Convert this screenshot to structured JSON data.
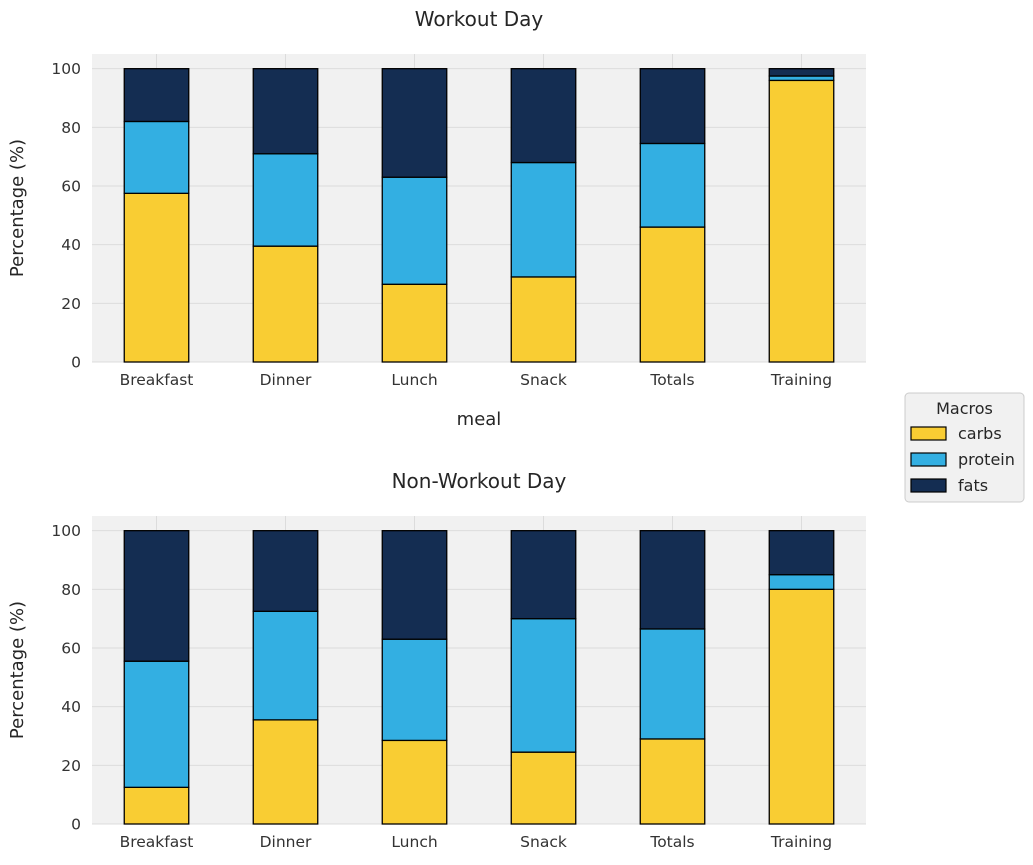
{
  "colors": {
    "carbs": "#F9CD33",
    "protein": "#33AFE2",
    "fats": "#142D52",
    "plot_bg": "#F1F1F1",
    "grid": "#DCDCDC",
    "bar_edge": "#000000"
  },
  "legend": {
    "title": "Macros",
    "placement": "right-center",
    "entries": [
      "carbs",
      "protein",
      "fats"
    ]
  },
  "chart_data": [
    {
      "type": "bar",
      "stacked": true,
      "title": "Workout Day",
      "xlabel": "meal",
      "ylabel": "Percentage (%)",
      "ylim": [
        0,
        105
      ],
      "yticks": [
        0,
        20,
        40,
        60,
        80,
        100
      ],
      "grid": true,
      "categories": [
        "Breakfast",
        "Dinner",
        "Lunch",
        "Snack",
        "Totals",
        "Training"
      ],
      "series": [
        {
          "name": "carbs",
          "values": [
            57.5,
            39.5,
            26.5,
            29,
            46,
            96
          ]
        },
        {
          "name": "protein",
          "values": [
            24.5,
            31.5,
            36.5,
            39,
            28.5,
            1.5
          ]
        },
        {
          "name": "fats",
          "values": [
            18,
            29,
            37,
            32,
            25.5,
            2.5
          ]
        }
      ]
    },
    {
      "type": "bar",
      "stacked": true,
      "title": "Non-Workout Day",
      "xlabel": "",
      "ylabel": "Percentage (%)",
      "ylim": [
        0,
        105
      ],
      "yticks": [
        0,
        20,
        40,
        60,
        80,
        100
      ],
      "grid": true,
      "categories": [
        "Breakfast",
        "Dinner",
        "Lunch",
        "Snack",
        "Totals",
        "Training"
      ],
      "series": [
        {
          "name": "carbs",
          "values": [
            12.5,
            35.5,
            28.5,
            24.5,
            29,
            80
          ]
        },
        {
          "name": "protein",
          "values": [
            43,
            37,
            34.5,
            45.5,
            37.5,
            5
          ]
        },
        {
          "name": "fats",
          "values": [
            44.5,
            27.5,
            37,
            30,
            33.5,
            15
          ]
        }
      ]
    }
  ]
}
